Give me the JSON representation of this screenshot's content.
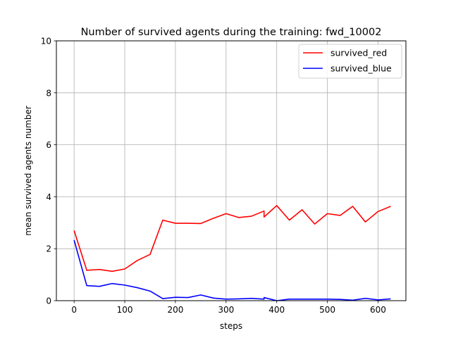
{
  "chart_data": {
    "type": "line",
    "title": "Number of survived agents during the training: fwd_10002",
    "xlabel": "steps",
    "ylabel": "mean survived agents number",
    "xlim": [
      -35,
      655
    ],
    "ylim": [
      0,
      10
    ],
    "x_ticks": [
      0,
      100,
      200,
      300,
      400,
      500,
      600
    ],
    "y_ticks": [
      0,
      2,
      4,
      6,
      8,
      10
    ],
    "grid": true,
    "legend_position": "top-right",
    "series": [
      {
        "name": "survived_red",
        "color": "#ff0000",
        "x": [
          0,
          25,
          50,
          75,
          100,
          125,
          150,
          175,
          200,
          225,
          250,
          275,
          300,
          325,
          350,
          375,
          375,
          400,
          425,
          450,
          475,
          500,
          525,
          550,
          575,
          600,
          625
        ],
        "y": [
          2.7,
          1.17,
          1.2,
          1.13,
          1.22,
          1.55,
          1.78,
          3.1,
          2.98,
          2.98,
          2.97,
          3.17,
          3.35,
          3.2,
          3.25,
          3.45,
          3.22,
          3.66,
          3.1,
          3.5,
          2.95,
          3.35,
          3.28,
          3.63,
          3.03,
          3.43,
          3.63
        ]
      },
      {
        "name": "survived_blue",
        "color": "#0000ff",
        "x": [
          0,
          25,
          50,
          75,
          100,
          125,
          150,
          175,
          200,
          225,
          250,
          275,
          300,
          325,
          350,
          375,
          375,
          400,
          425,
          450,
          475,
          500,
          525,
          550,
          575,
          600,
          625
        ],
        "y": [
          2.33,
          0.58,
          0.55,
          0.66,
          0.6,
          0.5,
          0.37,
          0.08,
          0.13,
          0.12,
          0.22,
          0.1,
          0.06,
          0.07,
          0.09,
          0.06,
          0.12,
          0.0,
          0.06,
          0.06,
          0.06,
          0.06,
          0.05,
          0.02,
          0.09,
          0.03,
          0.07
        ]
      }
    ]
  }
}
